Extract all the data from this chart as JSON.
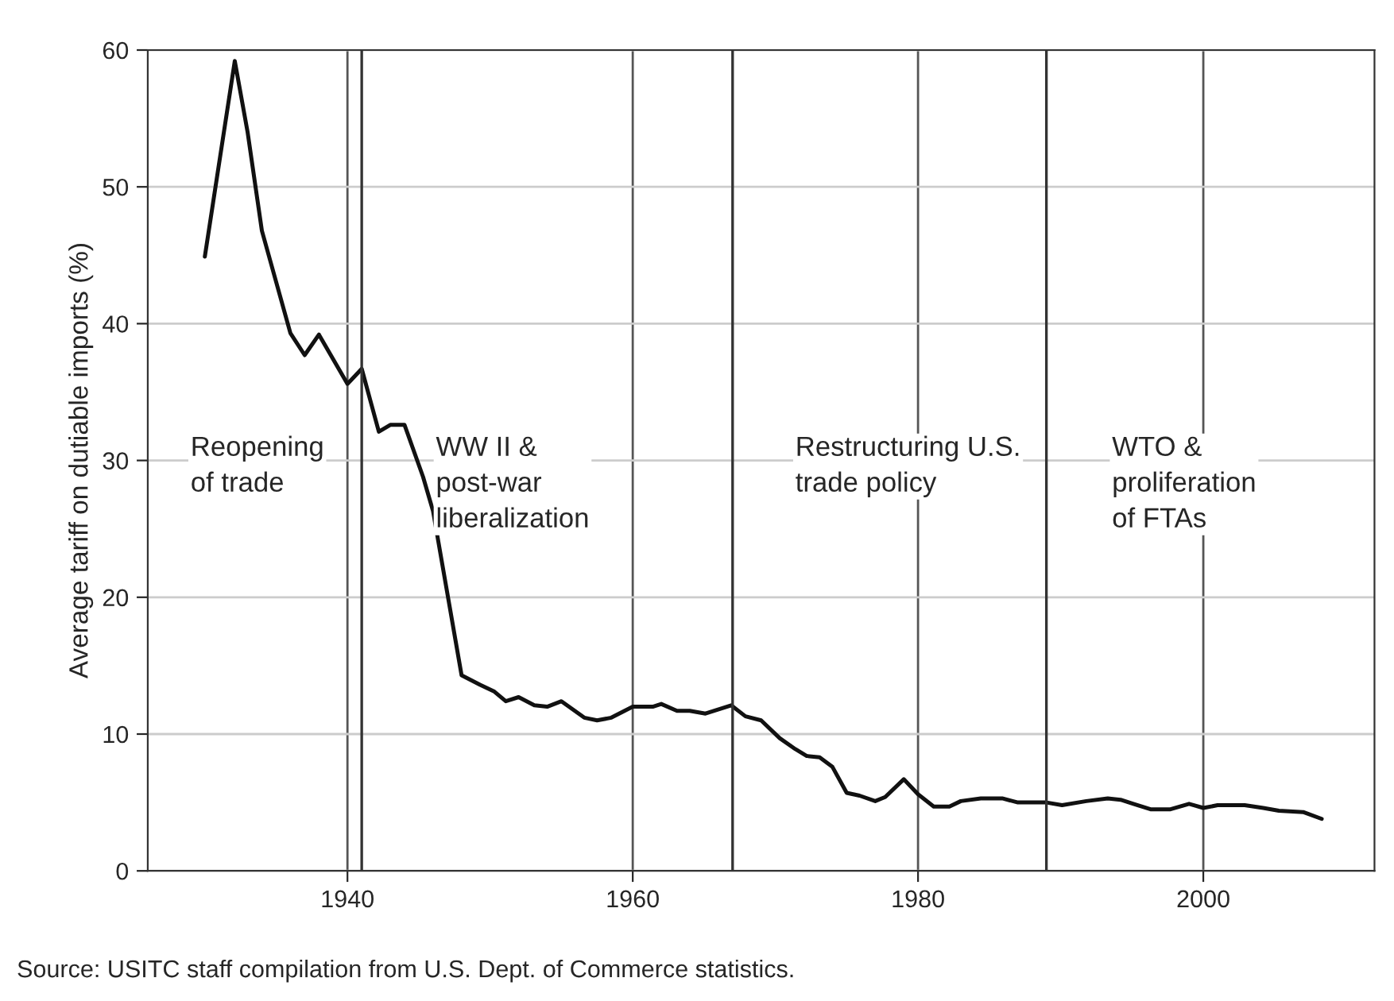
{
  "chart_data": {
    "type": "line",
    "ylabel": "Average tariff on dutiable imports (%)",
    "x": [
      1930,
      1932.1,
      1933,
      1934,
      1936,
      1937,
      1938,
      1940,
      1941,
      1942.2,
      1943,
      1944,
      1945.3,
      1946,
      1948,
      1949.3,
      1950.3,
      1951.1,
      1952,
      1953.1,
      1954,
      1955,
      1956.6,
      1957.5,
      1958.5,
      1960,
      1961.4,
      1962,
      1963.1,
      1964,
      1965.1,
      1966.9,
      1967.9,
      1969,
      1970.3,
      1971.4,
      1972.2,
      1973.1,
      1974,
      1975,
      1975.9,
      1977,
      1977.7,
      1979,
      1980,
      1981.1,
      1982.2,
      1983,
      1984.4,
      1985.9,
      1987,
      1989,
      1990.1,
      1991.8,
      1993.3,
      1994.2,
      1995.1,
      1996.3,
      1997.7,
      1999,
      2000,
      2001,
      2002.9,
      2004.2,
      2005.3,
      2007,
      2008.3
    ],
    "series": [
      {
        "color": "#111111",
        "values": [
          44.9,
          59.2,
          54.0,
          46.8,
          39.3,
          37.7,
          39.2,
          35.6,
          36.7,
          32.1,
          32.6,
          32.6,
          28.8,
          26.3,
          14.3,
          13.6,
          13.1,
          12.4,
          12.7,
          12.1,
          12.0,
          12.4,
          11.2,
          11.0,
          11.2,
          12.0,
          12.0,
          12.2,
          11.7,
          11.7,
          11.5,
          12.1,
          11.3,
          11.0,
          9.7,
          8.9,
          8.4,
          8.3,
          7.6,
          5.7,
          5.5,
          5.1,
          5.4,
          6.7,
          5.6,
          4.7,
          4.7,
          5.1,
          5.3,
          5.3,
          5.0,
          5.0,
          4.8,
          5.1,
          5.3,
          5.2,
          4.9,
          4.5,
          4.5,
          4.9,
          4.6,
          4.8,
          4.8,
          4.6,
          4.4,
          4.3,
          3.8
        ]
      }
    ],
    "xlim": [
      1926,
      2012
    ],
    "xticks": [
      1940,
      1960,
      1980,
      2000
    ],
    "ylim": [
      0,
      60
    ],
    "yticks": [
      0,
      10,
      20,
      30,
      40,
      50,
      60
    ],
    "grid": true,
    "ref_lines": [
      {
        "axis": "x",
        "value": 1941,
        "color": "#333333"
      },
      {
        "axis": "x",
        "value": 1967,
        "color": "#333333"
      },
      {
        "axis": "x",
        "value": 1989,
        "color": "#333333"
      }
    ],
    "annotations": [
      "Reopening\nof trade",
      "WW II &\npost-war\nliberalization",
      "Restructuring U.S.\ntrade policy",
      "WTO &\nproliferation\nof FTAs",
      "Source: USITC staff compilation from U.S. Dept. of Commerce statistics."
    ]
  }
}
